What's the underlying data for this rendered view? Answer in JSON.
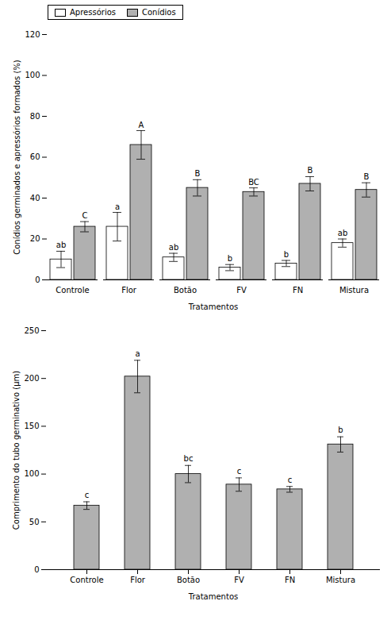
{
  "chart_data": [
    {
      "type": "bar",
      "categories": [
        "Controle",
        "Flor",
        "Botão",
        "FV",
        "FN",
        "Mistura"
      ],
      "series": [
        {
          "name": "Apressórios",
          "color": "#ffffff",
          "values": [
            10,
            26,
            11,
            6,
            8,
            18
          ],
          "errors": [
            4,
            7,
            2,
            1.5,
            1.5,
            2
          ],
          "annotations": [
            "ab",
            "a",
            "ab",
            "b",
            "b",
            "ab"
          ]
        },
        {
          "name": "Conídios",
          "color": "#b0b0b0",
          "values": [
            26,
            66,
            45,
            43,
            47,
            44
          ],
          "errors": [
            2.5,
            7,
            4,
            2,
            3.5,
            3.5
          ],
          "annotations": [
            "C",
            "A",
            "B",
            "BC",
            "B",
            "B"
          ]
        }
      ],
      "xlabel": "Tratamentos",
      "ylabel": "Conídios germinados e apressórios formados (%)",
      "ylim": [
        0,
        120
      ],
      "yticks": [
        0,
        20,
        40,
        60,
        80,
        100,
        120
      ],
      "legend": "upper left"
    },
    {
      "type": "bar",
      "categories": [
        "Controle",
        "Flor",
        "Botão",
        "FV",
        "FN",
        "Mistura"
      ],
      "values": [
        67,
        202,
        100,
        89,
        84,
        131
      ],
      "errors": [
        4,
        17,
        9,
        7,
        3,
        8
      ],
      "annotations": [
        "c",
        "a",
        "bc",
        "c",
        "c",
        "b"
      ],
      "color": "#b0b0b0",
      "xlabel": "Tratamentos",
      "ylabel": "Comprimento do tubo germinativo (μm)",
      "ylim": [
        0,
        250
      ],
      "yticks": [
        0,
        50,
        100,
        150,
        200,
        250
      ]
    }
  ]
}
